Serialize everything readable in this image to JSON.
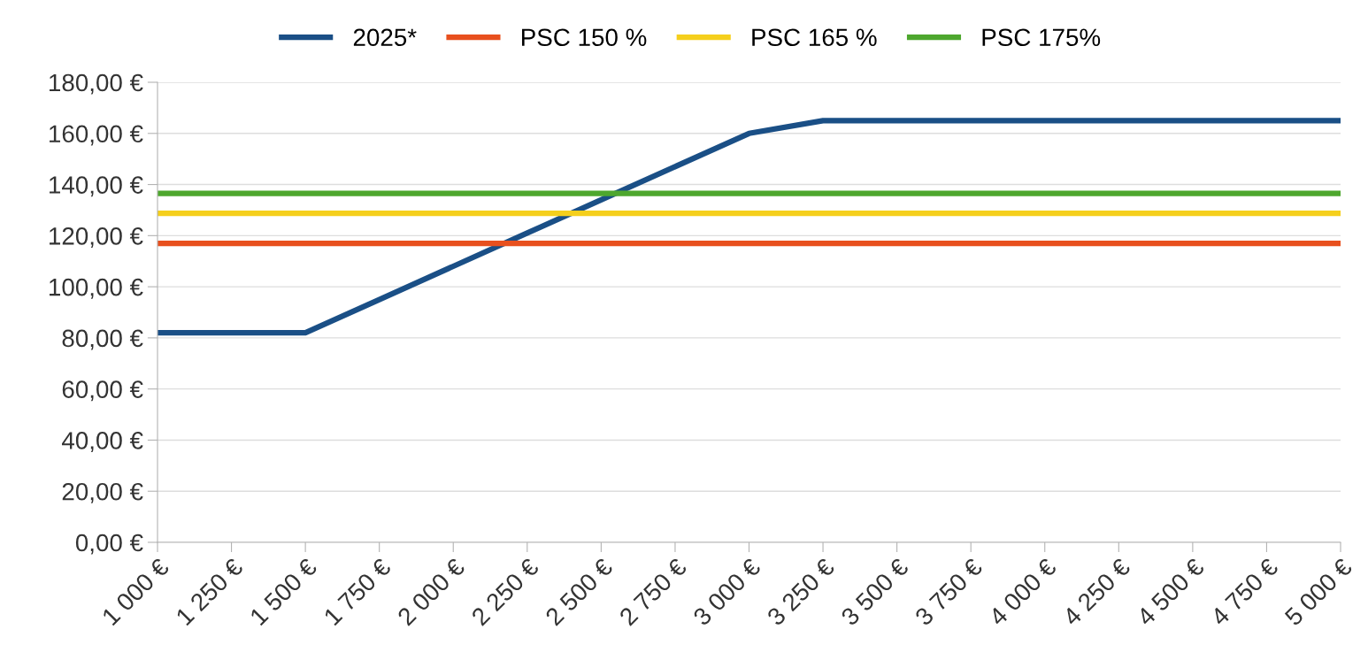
{
  "chart_data": {
    "type": "line",
    "categories": [
      "1 000 €",
      "1 250 €",
      "1 500 €",
      "1 750 €",
      "2 000 €",
      "2 250 €",
      "2 500 €",
      "2 750 €",
      "3 000 €",
      "3 250 €",
      "3 500 €",
      "3 750 €",
      "4 000 €",
      "4 250 €",
      "4 500 €",
      "4 750 €",
      "5 000 €"
    ],
    "series": [
      {
        "name": "2025*",
        "color": "#1a4f86",
        "values": [
          82,
          82,
          82,
          95,
          108,
          121,
          134,
          147,
          160,
          165,
          165,
          165,
          165,
          165,
          165,
          165,
          165
        ]
      },
      {
        "name": "PSC 150 %",
        "color": "#e8501e",
        "values": [
          117,
          117,
          117,
          117,
          117,
          117,
          117,
          117,
          117,
          117,
          117,
          117,
          117,
          117,
          117,
          117,
          117
        ]
      },
      {
        "name": "PSC 165 %",
        "color": "#f5cf1c",
        "values": [
          128.7,
          128.7,
          128.7,
          128.7,
          128.7,
          128.7,
          128.7,
          128.7,
          128.7,
          128.7,
          128.7,
          128.7,
          128.7,
          128.7,
          128.7,
          128.7,
          128.7
        ]
      },
      {
        "name": "PSC 175%",
        "color": "#4ea72e",
        "values": [
          136.5,
          136.5,
          136.5,
          136.5,
          136.5,
          136.5,
          136.5,
          136.5,
          136.5,
          136.5,
          136.5,
          136.5,
          136.5,
          136.5,
          136.5,
          136.5,
          136.5
        ]
      }
    ],
    "ylim": [
      0,
      180
    ],
    "yticks": [
      {
        "value": 0,
        "label": "0,00 €"
      },
      {
        "value": 20,
        "label": "20,00 €"
      },
      {
        "value": 40,
        "label": "40,00 €"
      },
      {
        "value": 60,
        "label": "60,00 €"
      },
      {
        "value": 80,
        "label": "80,00 €"
      },
      {
        "value": 100,
        "label": "100,00 €"
      },
      {
        "value": 120,
        "label": "120,00 €"
      },
      {
        "value": 140,
        "label": "140,00 €"
      },
      {
        "value": 160,
        "label": "160,00 €"
      },
      {
        "value": 180,
        "label": "180,00 €"
      }
    ],
    "grid": "y",
    "legend": "top",
    "marker": "none",
    "line_style": "solid"
  }
}
